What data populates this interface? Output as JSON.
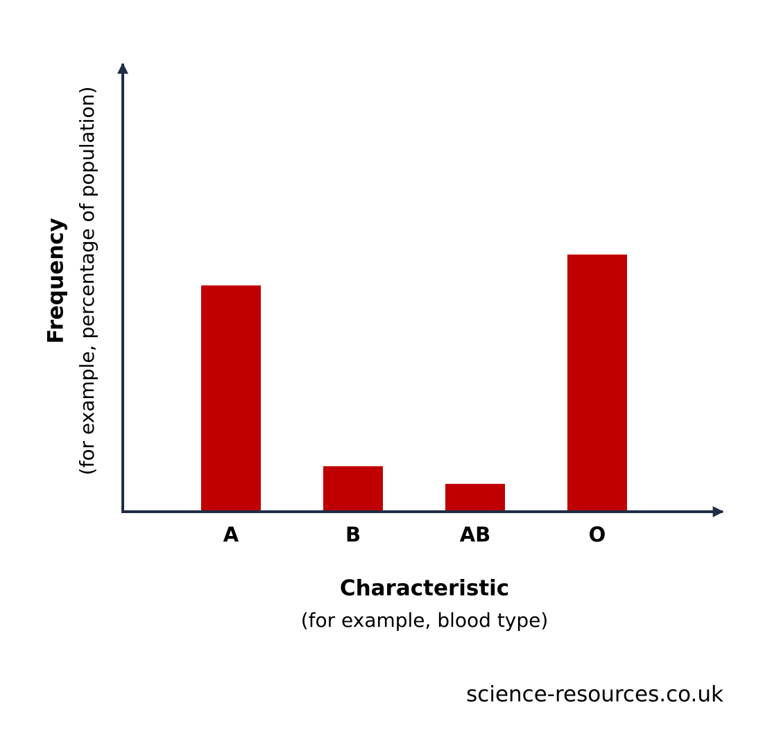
{
  "chart_data": {
    "type": "bar",
    "y_label": "Frequency",
    "y_sublabel": "(for example, percentage of population)",
    "x_label": "Characteristic",
    "x_sublabel": "(for example, blood type)",
    "source": "science-resources.co.uk",
    "categories": [
      "A",
      "B",
      "AB",
      "O"
    ],
    "values": [
      51,
      10,
      6,
      58
    ],
    "color": "#c00000",
    "ylim": [
      0,
      100
    ]
  }
}
